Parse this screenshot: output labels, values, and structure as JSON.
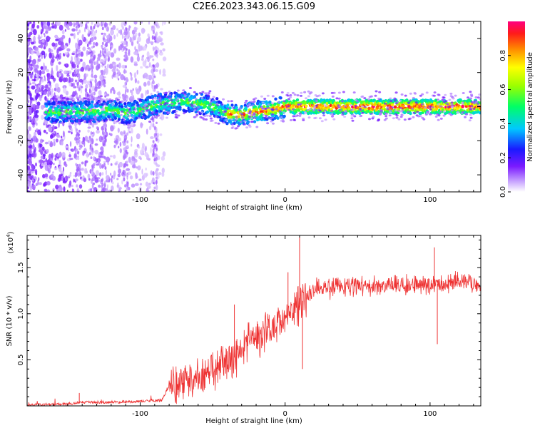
{
  "title": "C2E6.2023.343.06.15.G09",
  "chart_data": [
    {
      "type": "heatmap",
      "xlabel": "Height of straight line (km)",
      "ylabel": "Frequency (Hz)",
      "xlim": [
        -178,
        135
      ],
      "ylim": [
        -50,
        50
      ],
      "xticks": [
        "-100",
        "0",
        "100"
      ],
      "xtick_values": [
        -100,
        0,
        100
      ],
      "yticks": [
        "-40",
        "-20",
        "0",
        "20",
        "40"
      ],
      "ytick_values": [
        -40,
        -20,
        0,
        20,
        40
      ],
      "colorbar": {
        "label": "Normalized spectral amplitude",
        "range": [
          0,
          1
        ],
        "ticks": [
          "0.0",
          "0.2",
          "0.4",
          "0.6",
          "0.8"
        ],
        "tick_values": [
          0.0,
          0.2,
          0.4,
          0.6,
          0.8
        ]
      },
      "ridge": {
        "x": [
          -160,
          -150,
          -140,
          -130,
          -120,
          -110,
          -100,
          -90,
          -80,
          -70,
          -60,
          -50,
          -40,
          -30,
          -20,
          -10,
          0,
          10,
          20,
          40,
          60,
          80,
          100,
          120,
          135
        ],
        "frequency": [
          -3,
          -3,
          -3,
          -3,
          -2,
          -4,
          -2,
          1,
          2,
          3,
          2,
          0,
          -4,
          -5,
          -3,
          -2,
          0,
          0,
          0,
          0,
          0,
          0,
          0,
          0,
          0
        ]
      }
    },
    {
      "type": "line",
      "xlabel": "Height of straight line (km)",
      "ylabel": "SNR (10 * v/v)",
      "y_multiplier": "(x10",
      "y_multiplier_exp": "4",
      "y_multiplier_close": ")",
      "xlim": [
        -178,
        135
      ],
      "ylim": [
        0,
        1.85
      ],
      "xticks": [
        "-100",
        "0",
        "100"
      ],
      "xtick_values": [
        -100,
        0,
        100
      ],
      "yticks": [
        "0.5",
        "1.0",
        "1.5"
      ],
      "ytick_values": [
        0.5,
        1.0,
        1.5
      ],
      "color": "#ee3333",
      "trend": {
        "x": [
          -178,
          -150,
          -140,
          -120,
          -100,
          -85,
          -80,
          -60,
          -40,
          -30,
          -20,
          -10,
          0,
          10,
          15,
          20,
          30,
          50,
          80,
          100,
          120,
          135
        ],
        "y": [
          0.01,
          0.02,
          0.04,
          0.04,
          0.05,
          0.06,
          0.22,
          0.28,
          0.45,
          0.6,
          0.75,
          0.85,
          0.95,
          1.1,
          1.2,
          1.28,
          1.28,
          1.3,
          1.3,
          1.32,
          1.35,
          1.32
        ]
      },
      "spikes": [
        {
          "x": -142,
          "y": 0.14
        },
        {
          "x": -35,
          "y": 1.1
        },
        {
          "x": 2,
          "y": 1.45
        },
        {
          "x": 10,
          "y": 1.85
        },
        {
          "x": 12,
          "y": 0.4
        },
        {
          "x": 103,
          "y": 1.72
        },
        {
          "x": 105,
          "y": 0.67
        }
      ]
    }
  ]
}
